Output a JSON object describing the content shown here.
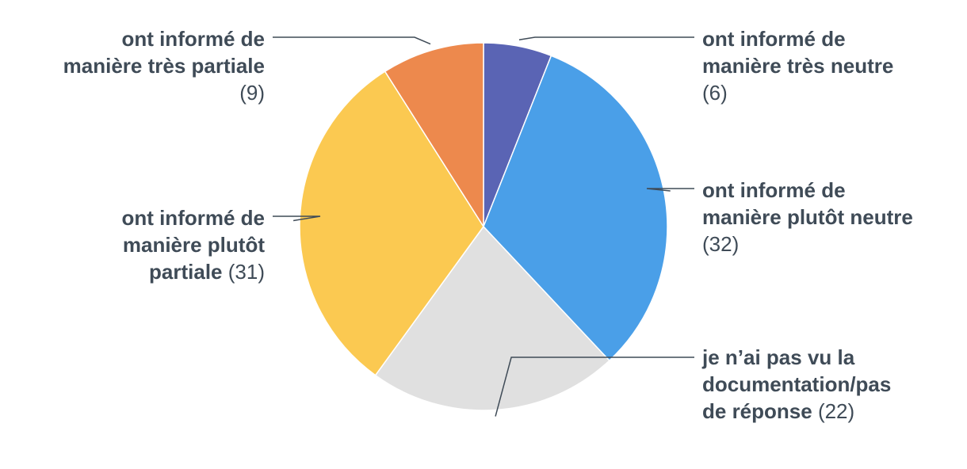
{
  "chart_data": {
    "type": "pie",
    "title": "",
    "start_angle_deg": 0,
    "direction": "clockwise",
    "slices": [
      {
        "label": "ont informé de manière très neutre",
        "label_lines": [
          "ont informé de",
          "manière très neutre"
        ],
        "value_line": "(6)",
        "value": 6,
        "color": "#5a64b4"
      },
      {
        "label": "ont informé de manière plutôt neutre",
        "label_lines": [
          "ont informé de",
          "manière plutôt neutre"
        ],
        "value_line": "(32)",
        "value": 32,
        "color": "#4a9fe8"
      },
      {
        "label": "je n'ai pas vu la documentation/pas de réponse",
        "label_lines": [
          "je n’ai pas vu la",
          "documentation/pas",
          "de réponse"
        ],
        "value_line": "(22)",
        "value": 22,
        "color": "#e0e0e0"
      },
      {
        "label": "ont informé de manière plutôt partiale",
        "label_lines": [
          "ont informé de",
          "manière plutôt",
          "partiale"
        ],
        "value_line": "(31)",
        "value": 31,
        "color": "#fbc951"
      },
      {
        "label": "ont informé de manière très partiale",
        "label_lines": [
          "ont informé de",
          "manière très partiale"
        ],
        "value_line": "(9)",
        "value": 9,
        "color": "#ed894d"
      }
    ],
    "legend": "callouts"
  }
}
